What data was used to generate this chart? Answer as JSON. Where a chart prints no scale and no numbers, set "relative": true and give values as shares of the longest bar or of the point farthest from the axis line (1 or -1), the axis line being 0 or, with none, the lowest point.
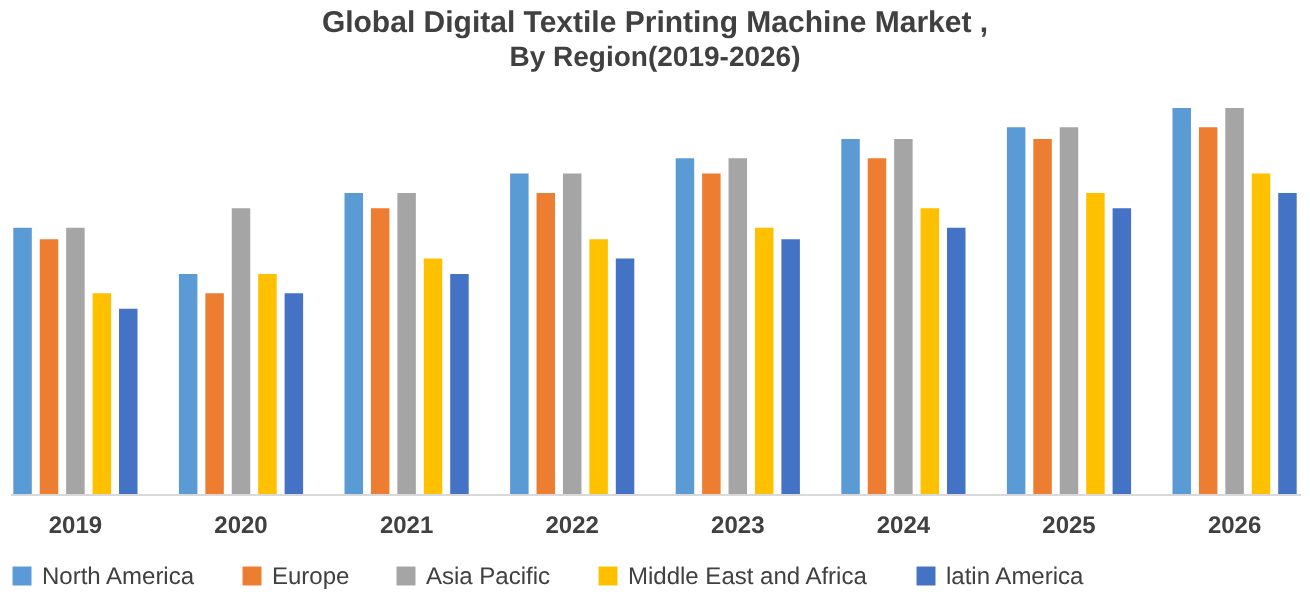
{
  "chart_data": {
    "type": "bar",
    "title": "Global Digital Textile Printing Machine Market  ,",
    "subtitle": "By Region(2019-2026)",
    "categories": [
      "2019",
      "2020",
      "2021",
      "2022",
      "2023",
      "2024",
      "2025",
      "2026"
    ],
    "relative": true,
    "legend": "bottom",
    "grid": false,
    "series": [
      {
        "name": "North America",
        "color": "#5b9bd5",
        "values": [
          0.69,
          0.57,
          0.78,
          0.83,
          0.87,
          0.92,
          0.95,
          1
        ]
      },
      {
        "name": "Europe",
        "color": "#ed7d31",
        "values": [
          0.66,
          0.52,
          0.74,
          0.78,
          0.83,
          0.87,
          0.92,
          0.95
        ]
      },
      {
        "name": "Asia Pacific",
        "color": "#a5a5a5",
        "values": [
          0.69,
          0.74,
          0.78,
          0.83,
          0.87,
          0.92,
          0.95,
          1
        ]
      },
      {
        "name": "Middle East and Africa",
        "color": "#ffc000",
        "values": [
          0.52,
          0.57,
          0.61,
          0.66,
          0.69,
          0.74,
          0.78,
          0.83
        ]
      },
      {
        "name": "latin  America",
        "color": "#4472c4",
        "values": [
          0.48,
          0.52,
          0.57,
          0.61,
          0.66,
          0.69,
          0.74,
          0.78
        ]
      }
    ]
  }
}
